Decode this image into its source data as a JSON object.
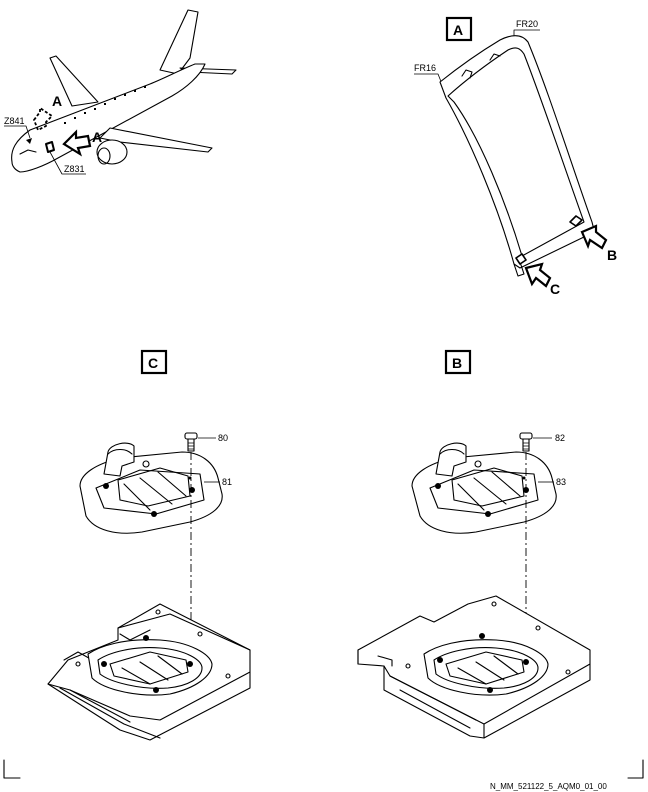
{
  "overview": {
    "view_label_1": "A",
    "view_label_2": "A",
    "zone_left": "Z841",
    "zone_right": "Z831"
  },
  "view_a": {
    "title": "A",
    "frame_top": "FR20",
    "frame_left": "FR16",
    "arrow_b": "B",
    "arrow_c": "C"
  },
  "view_c": {
    "title": "C",
    "item_screw": "80",
    "item_bracket": "81"
  },
  "view_b": {
    "title": "B",
    "item_screw": "82",
    "item_bracket": "83"
  },
  "footer": {
    "drawing_ref": "N_MM_521122_5_AQM0_01_00"
  }
}
